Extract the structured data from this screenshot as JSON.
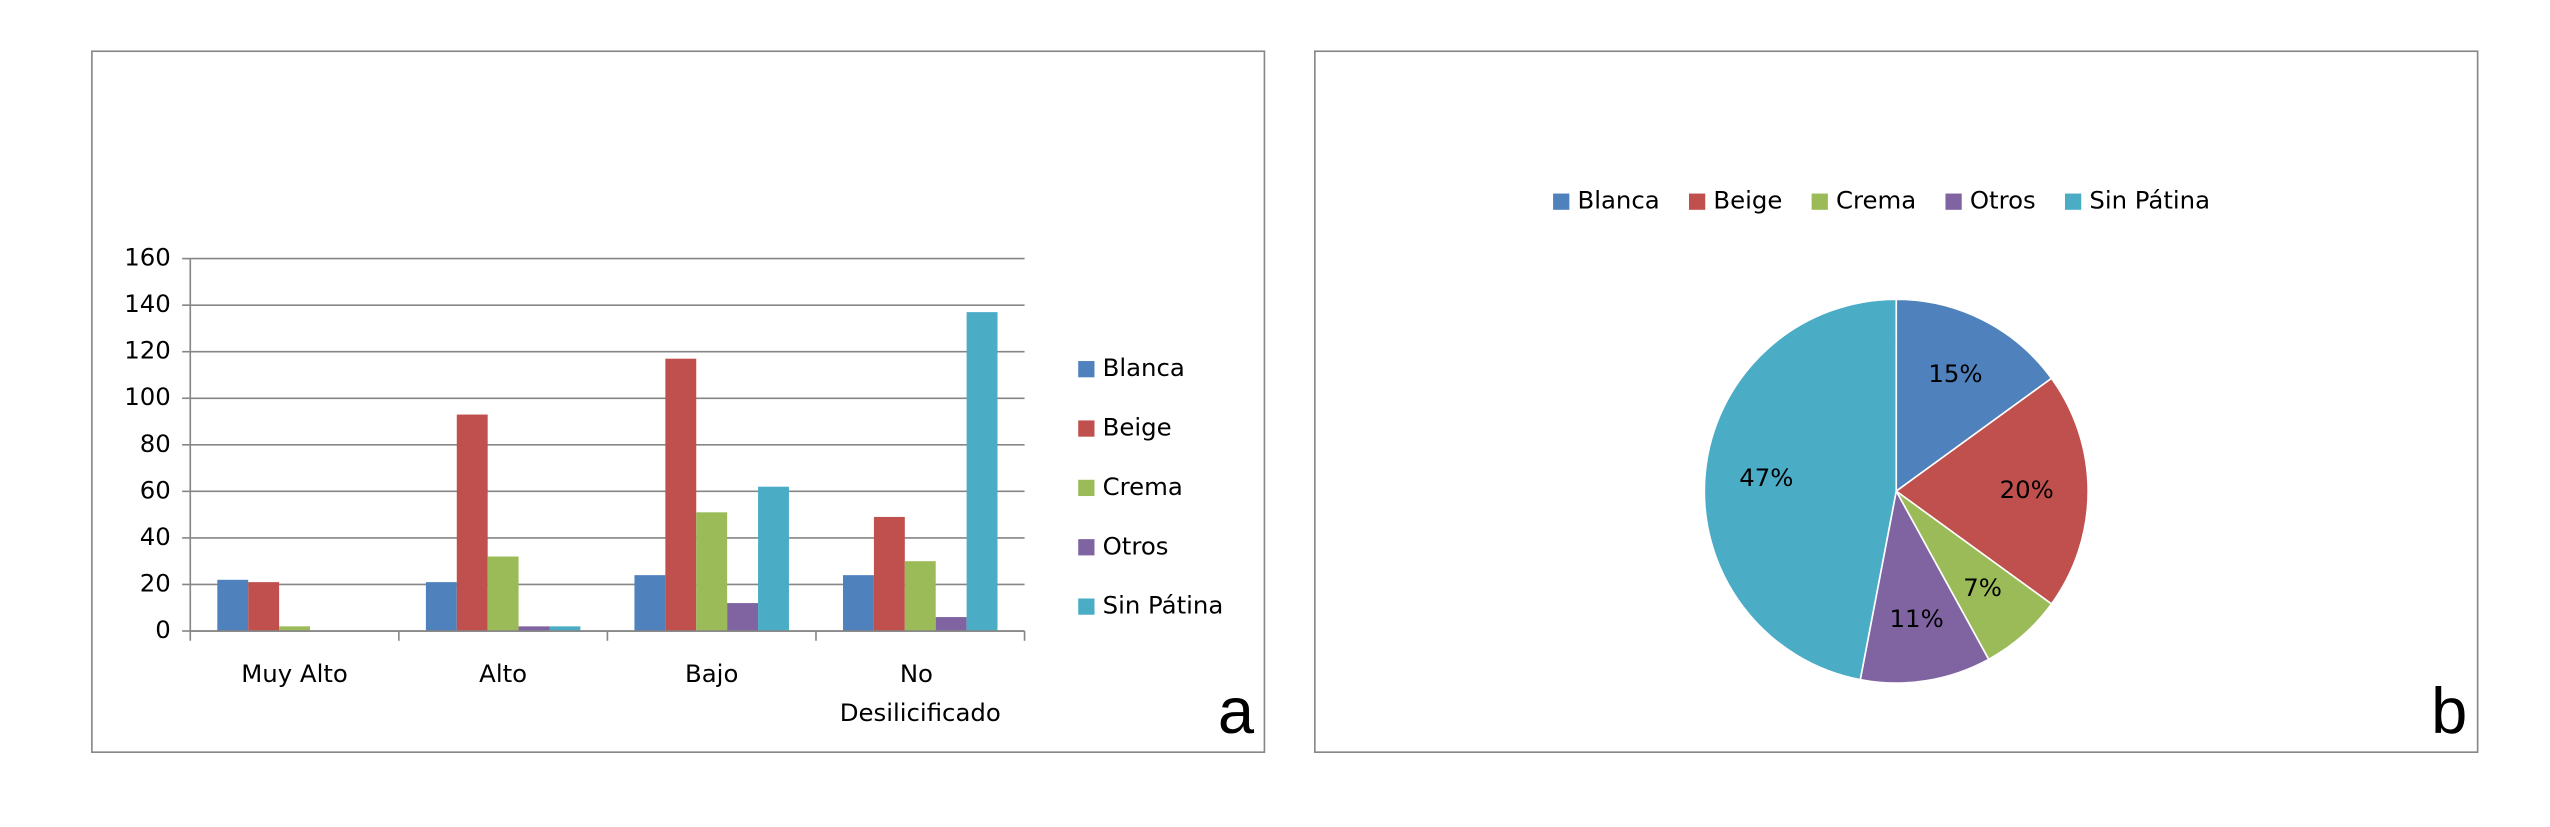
{
  "chart_data": [
    {
      "type": "bar",
      "categories": [
        "Muy Alto",
        "Alto",
        "Bajo",
        "No Desilicificado"
      ],
      "series": [
        {
          "name": "Blanca",
          "color": "#4f81bd",
          "values": [
            22,
            21,
            24,
            24
          ]
        },
        {
          "name": "Beige",
          "color": "#c0504d",
          "values": [
            21,
            93,
            117,
            49
          ]
        },
        {
          "name": "Crema",
          "color": "#9bbb59",
          "values": [
            2,
            32,
            51,
            30
          ]
        },
        {
          "name": "Otros",
          "color": "#8064a2",
          "values": [
            0,
            2,
            12,
            6
          ]
        },
        {
          "name": "Sin Pátina",
          "color": "#4bacc6",
          "values": [
            0,
            2,
            62,
            137
          ]
        }
      ],
      "ylim": [
        0,
        160
      ],
      "yticks": [
        0,
        20,
        40,
        60,
        80,
        100,
        120,
        140,
        160
      ],
      "grid": true,
      "legend": "right",
      "panel_label": "a"
    },
    {
      "type": "pie",
      "categories": [
        "Blanca",
        "Beige",
        "Crema",
        "Otros",
        "Sin Pátina"
      ],
      "values": [
        15,
        20,
        7,
        11,
        47
      ],
      "value_labels": [
        "15%",
        "20%",
        "7%",
        "11%",
        "47%"
      ],
      "colors": [
        "#4f81bd",
        "#c0504d",
        "#9bbb59",
        "#8064a2",
        "#4bacc6"
      ],
      "legend": "top",
      "panel_label": "b"
    }
  ]
}
